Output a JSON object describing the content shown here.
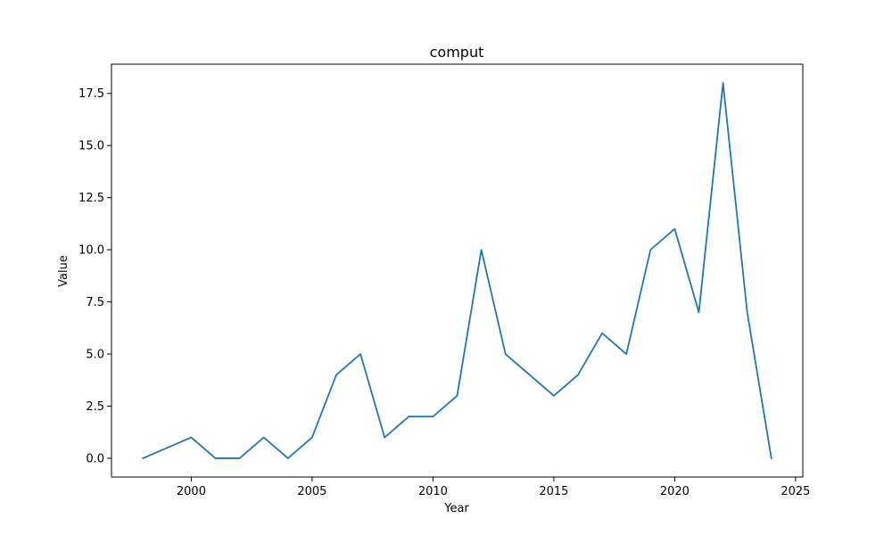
{
  "chart_data": {
    "type": "line",
    "title": "comput",
    "xlabel": "Year",
    "ylabel": "Value",
    "xlim": [
      1996.7,
      2025.3
    ],
    "ylim": [
      -0.9,
      18.9
    ],
    "xticks": [
      2000,
      2005,
      2010,
      2015,
      2020,
      2025
    ],
    "yticks": [
      0.0,
      2.5,
      5.0,
      7.5,
      10.0,
      12.5,
      15.0,
      17.5
    ],
    "ytick_labels": [
      "0.0",
      "2.5",
      "5.0",
      "7.5",
      "10.0",
      "12.5",
      "15.0",
      "17.5"
    ],
    "grid": false,
    "series": [
      {
        "color": "#1f77b4",
        "x": [
          1998,
          2000,
          2001,
          2002,
          2003,
          2004,
          2005,
          2006,
          2007,
          2008,
          2009,
          2010,
          2011,
          2012,
          2013,
          2015,
          2016,
          2017,
          2018,
          2019,
          2020,
          2021,
          2022,
          2023,
          2024
        ],
        "y": [
          0,
          1,
          0,
          0,
          1,
          0,
          1,
          4,
          5,
          1,
          2,
          2,
          3,
          10,
          5,
          3,
          4,
          6,
          5,
          10,
          11,
          7,
          18,
          7,
          0
        ]
      }
    ]
  }
}
